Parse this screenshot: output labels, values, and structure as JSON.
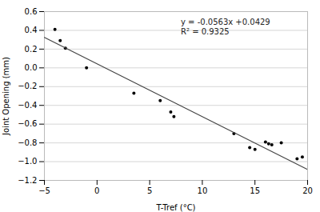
{
  "chart_data": {
    "type": "scatter",
    "xlabel": "T-Tref (°C)",
    "ylabel": "Joint Opening (mm)",
    "xlim": [
      -5,
      20
    ],
    "ylim": [
      -1.2,
      0.6
    ],
    "xticks": [
      {
        "value": -5,
        "label": "−5"
      },
      0,
      5,
      10,
      15,
      20
    ],
    "yticks": [
      {
        "value": -1.2,
        "label": "−1.2"
      },
      {
        "value": -1.0,
        "label": "−1.0"
      },
      {
        "value": -0.8,
        "label": "−0.8"
      },
      {
        "value": -0.6,
        "label": "−0.6"
      },
      {
        "value": -0.4,
        "label": "−0.4"
      },
      {
        "value": -0.2,
        "label": "−0.2"
      },
      {
        "value": 0.0,
        "label": "0.0"
      },
      {
        "value": 0.2,
        "label": "0.2"
      },
      {
        "value": 0.4,
        "label": "0.4"
      },
      {
        "value": 0.6,
        "label": "0.6"
      }
    ],
    "grid": true,
    "annotations": [
      "y = -0.0563x +0.0429",
      "R² = 0.9325"
    ],
    "series": [
      {
        "type": "scatter",
        "color": "#000000",
        "x": [
          -4.0,
          -3.5,
          -3.0,
          -1.0,
          3.5,
          6.0,
          7.0,
          7.3,
          13.0,
          14.5,
          15.0,
          16.0,
          16.3,
          16.6,
          17.5,
          19.0,
          19.5
        ],
        "values": [
          0.41,
          0.29,
          0.21,
          0.0,
          -0.27,
          -0.35,
          -0.47,
          -0.52,
          -0.7,
          -0.85,
          -0.87,
          -0.79,
          -0.81,
          -0.82,
          -0.8,
          -0.97,
          -0.95
        ]
      },
      {
        "type": "line",
        "color": "#444444",
        "x": [
          -5.0,
          20.0
        ],
        "values": [
          0.3244,
          -1.0831
        ]
      }
    ]
  }
}
